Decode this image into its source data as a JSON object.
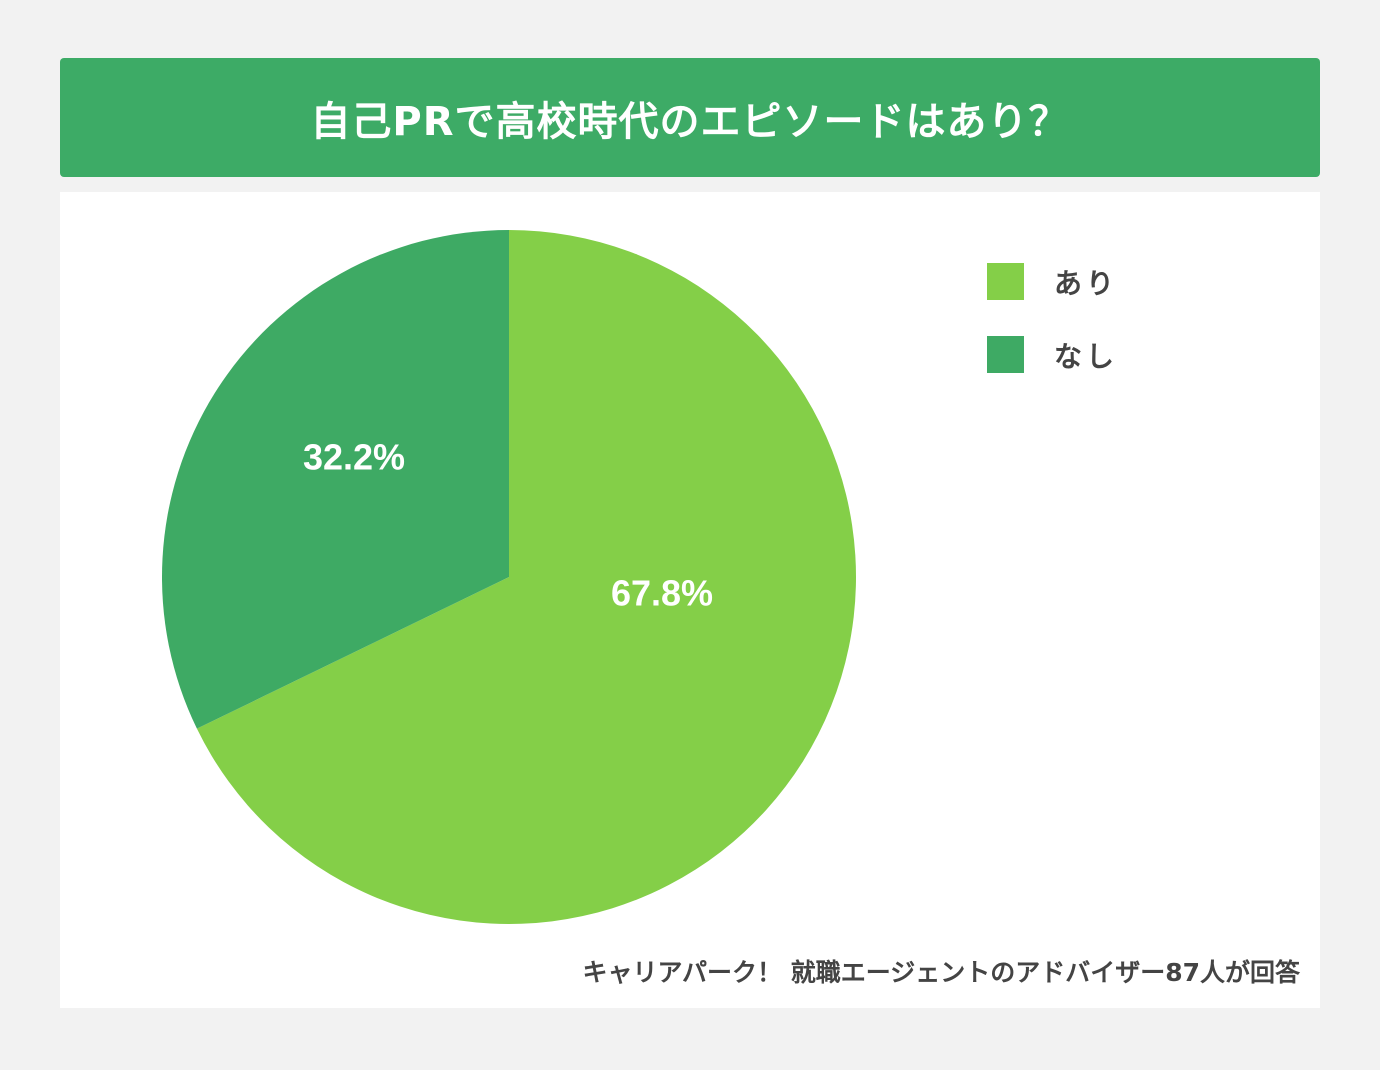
{
  "chart_data": {
    "type": "pie",
    "title": "自己PRで高校時代のエピソードはあり？",
    "categories": [
      "あり",
      "なし"
    ],
    "values": [
      67.8,
      32.2
    ],
    "data_labels": [
      "67.8%",
      "32.2%"
    ],
    "colors": [
      "#84cf48",
      "#3eaa64"
    ],
    "legend_position": "top-right",
    "source": "キャリアパーク！ 就職エージェントのアドバイザー87人が回答"
  }
}
